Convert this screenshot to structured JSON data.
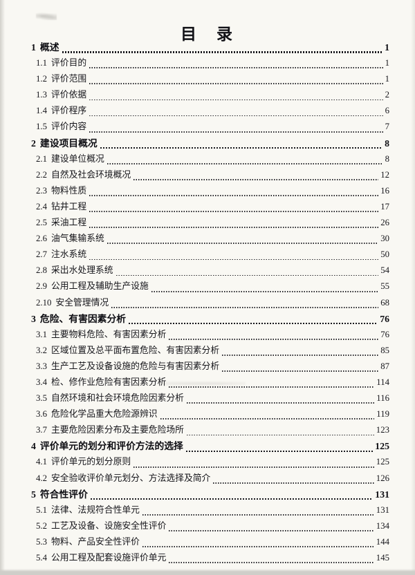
{
  "page": {
    "title": "目　录"
  },
  "toc": [
    {
      "level": 1,
      "num": "1",
      "label": "概述",
      "page": "1"
    },
    {
      "level": 2,
      "num": "1.1",
      "label": "评价目的",
      "page": "1"
    },
    {
      "level": 2,
      "num": "1.2",
      "label": "评价范围",
      "page": "1"
    },
    {
      "level": 2,
      "num": "1.3",
      "label": "评价依据",
      "page": "2"
    },
    {
      "level": 2,
      "num": "1.4",
      "label": "评价程序",
      "page": "6"
    },
    {
      "level": 2,
      "num": "1.5",
      "label": "评价内容",
      "page": "7"
    },
    {
      "level": 1,
      "num": "2",
      "label": "建设项目概况",
      "page": "8"
    },
    {
      "level": 2,
      "num": "2.1",
      "label": "建设单位概况",
      "page": "8"
    },
    {
      "level": 2,
      "num": "2.2",
      "label": "自然及社会环境概况",
      "page": "12"
    },
    {
      "level": 2,
      "num": "2.3",
      "label": "物料性质",
      "page": "16"
    },
    {
      "level": 2,
      "num": "2.4",
      "label": "钻井工程",
      "page": "17"
    },
    {
      "level": 2,
      "num": "2.5",
      "label": "采油工程",
      "page": "26"
    },
    {
      "level": 2,
      "num": "2.6",
      "label": "油气集输系统",
      "page": "30"
    },
    {
      "level": 2,
      "num": "2.7",
      "label": "注水系统",
      "page": "50"
    },
    {
      "level": 2,
      "num": "2.8",
      "label": "采出水处理系统",
      "page": "54"
    },
    {
      "level": 2,
      "num": "2.9",
      "label": "公用工程及辅助生产设施",
      "page": "55"
    },
    {
      "level": 2,
      "num": "2.10",
      "label": "安全管理情况",
      "page": "68"
    },
    {
      "level": 1,
      "num": "3",
      "label": "危险、有害因素分析",
      "page": "76"
    },
    {
      "level": 2,
      "num": "3.1",
      "label": "主要物料危险、有害因素分析",
      "page": "76"
    },
    {
      "level": 2,
      "num": "3.2",
      "label": "区域位置及总平面布置危险、有害因素分析",
      "page": "85"
    },
    {
      "level": 2,
      "num": "3.3",
      "label": "生产工艺及设备设施的危险与有害因素分析",
      "page": "87"
    },
    {
      "level": 2,
      "num": "3.4",
      "label": "检、修作业危险有害因素分析",
      "page": "114"
    },
    {
      "level": 2,
      "num": "3.5",
      "label": "自然环境和社会环境危险因素分析",
      "page": "116"
    },
    {
      "level": 2,
      "num": "3.6",
      "label": "危险化学品重大危险源辨识",
      "page": "119"
    },
    {
      "level": 2,
      "num": "3.7",
      "label": "主要危险因素分布及主要危险场所",
      "page": "123"
    },
    {
      "level": 1,
      "num": "4",
      "label": "评价单元的划分和评价方法的选择",
      "page": "125"
    },
    {
      "level": 2,
      "num": "4.1",
      "label": "评价单元的划分原则",
      "page": "125"
    },
    {
      "level": 2,
      "num": "4.2",
      "label": "安全验收评价单元划分、方法选择及简介",
      "page": "126"
    },
    {
      "level": 1,
      "num": "5",
      "label": "符合性评价",
      "page": "131"
    },
    {
      "level": 2,
      "num": "5.1",
      "label": "法律、法规符合性单元",
      "page": "131"
    },
    {
      "level": 2,
      "num": "5.2",
      "label": "工艺及设备、设施安全性评价",
      "page": "134"
    },
    {
      "level": 2,
      "num": "5.3",
      "label": "物料、产品安全性评价",
      "page": "144"
    },
    {
      "level": 2,
      "num": "5.4",
      "label": "公用工程及配套设施评价单元",
      "page": "145"
    }
  ]
}
